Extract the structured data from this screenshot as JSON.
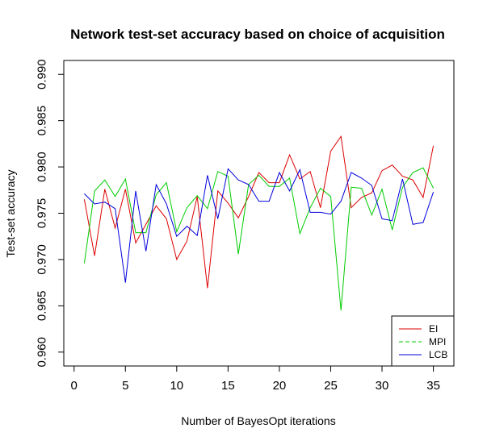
{
  "chart_data": {
    "type": "line",
    "title": "Network test-set accuracy based on choice of acquisition",
    "xlabel": "Number of BayesOpt iterations",
    "ylabel": "Test-set accuracy",
    "xlim": [
      -1,
      37
    ],
    "ylim": [
      0.9585,
      0.9915
    ],
    "x_ticks": [
      "0",
      "5",
      "10",
      "15",
      "20",
      "25",
      "30",
      "35"
    ],
    "y_ticks": [
      "0.960",
      "0.965",
      "0.970",
      "0.975",
      "0.980",
      "0.985",
      "0.990"
    ],
    "grid": false,
    "legend_position": "bottom-right",
    "x": [
      1,
      2,
      3,
      4,
      5,
      6,
      7,
      8,
      9,
      10,
      11,
      12,
      13,
      14,
      15,
      16,
      17,
      18,
      19,
      20,
      21,
      22,
      23,
      24,
      25,
      26,
      27,
      28,
      29,
      30,
      31,
      32,
      33,
      34,
      35
    ],
    "series": [
      {
        "name": "EI",
        "color": "#dd0000",
        "dash": "solid",
        "values": [
          0.9765,
          0.9704,
          0.9776,
          0.9734,
          0.9776,
          0.9718,
          0.9738,
          0.9758,
          0.9744,
          0.97,
          0.972,
          0.9768,
          0.9669,
          0.9774,
          0.9761,
          0.9745,
          0.9768,
          0.9794,
          0.9783,
          0.9783,
          0.9813,
          0.9787,
          0.9795,
          0.9756,
          0.9817,
          0.9833,
          0.9756,
          0.9767,
          0.9772,
          0.9796,
          0.9802,
          0.979,
          0.9786,
          0.9767,
          0.9823
        ]
      },
      {
        "name": "MPI",
        "color": "#00cc00",
        "dash": "dashed",
        "values": [
          0.9696,
          0.9774,
          0.9786,
          0.9768,
          0.9787,
          0.9729,
          0.9729,
          0.977,
          0.9783,
          0.973,
          0.9756,
          0.9769,
          0.9755,
          0.9795,
          0.979,
          0.9706,
          0.9781,
          0.9791,
          0.9779,
          0.9779,
          0.9788,
          0.9728,
          0.9756,
          0.9777,
          0.9768,
          0.9645,
          0.9778,
          0.9777,
          0.9748,
          0.9776,
          0.9732,
          0.9778,
          0.9794,
          0.9799,
          0.9777
        ]
      },
      {
        "name": "LCB",
        "color": "#0000dd",
        "dash": "solid",
        "values": [
          0.9771,
          0.976,
          0.9762,
          0.9755,
          0.9675,
          0.9774,
          0.9709,
          0.9781,
          0.976,
          0.9725,
          0.9736,
          0.9726,
          0.9791,
          0.9744,
          0.9798,
          0.9786,
          0.9781,
          0.9763,
          0.9763,
          0.9794,
          0.9774,
          0.9797,
          0.9751,
          0.9751,
          0.9749,
          0.9763,
          0.9794,
          0.9788,
          0.978,
          0.9744,
          0.9742,
          0.9787,
          0.9738,
          0.974,
          0.9773
        ]
      }
    ]
  }
}
